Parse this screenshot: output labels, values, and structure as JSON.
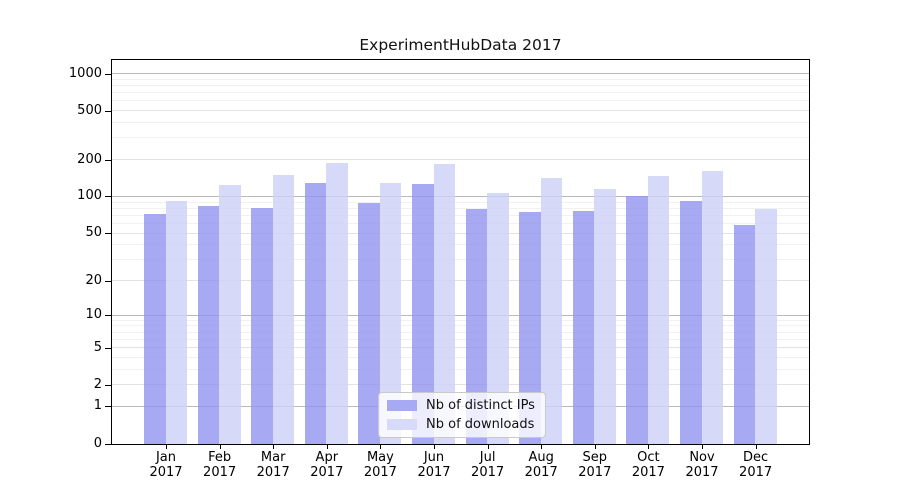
{
  "chart_data": {
    "type": "bar",
    "title": "ExperimentHubData 2017",
    "categories": [
      "Jan",
      "Feb",
      "Mar",
      "Apr",
      "May",
      "Jun",
      "Jul",
      "Aug",
      "Sep",
      "Oct",
      "Nov",
      "Dec"
    ],
    "category_year": "2017",
    "series": [
      {
        "name": "Nb of distinct IPs",
        "color": "#a7aaf3",
        "values": [
          72,
          84,
          81,
          130,
          90,
          128,
          80,
          75,
          77,
          102,
          92,
          59
        ]
      },
      {
        "name": "Nb of downloads",
        "color": "#d8daf9",
        "values": [
          92,
          125,
          152,
          190,
          129,
          187,
          107,
          142,
          116,
          148,
          162,
          79
        ]
      }
    ],
    "y_scale": "log10(value+1)",
    "y_ticks": [
      1000,
      500,
      200,
      100,
      50,
      20,
      10,
      5,
      2,
      1,
      0
    ],
    "y_tick_labels": [
      "1000",
      "500",
      "200",
      "100",
      "50",
      "20",
      "10",
      "5",
      "2",
      "1",
      "0"
    ],
    "ylim": [
      0,
      1000
    ],
    "grid": true,
    "legend_position": "bottom-center"
  },
  "colors": {
    "bar_ips": "#a7aaf3",
    "bar_downloads": "#d8daf9",
    "grid_major": "#b9b9b9",
    "grid_mid": "#e2e2e2",
    "grid_minor": "#f1f1f1",
    "axis": "#000000",
    "legend_border": "#c9c9c9"
  }
}
